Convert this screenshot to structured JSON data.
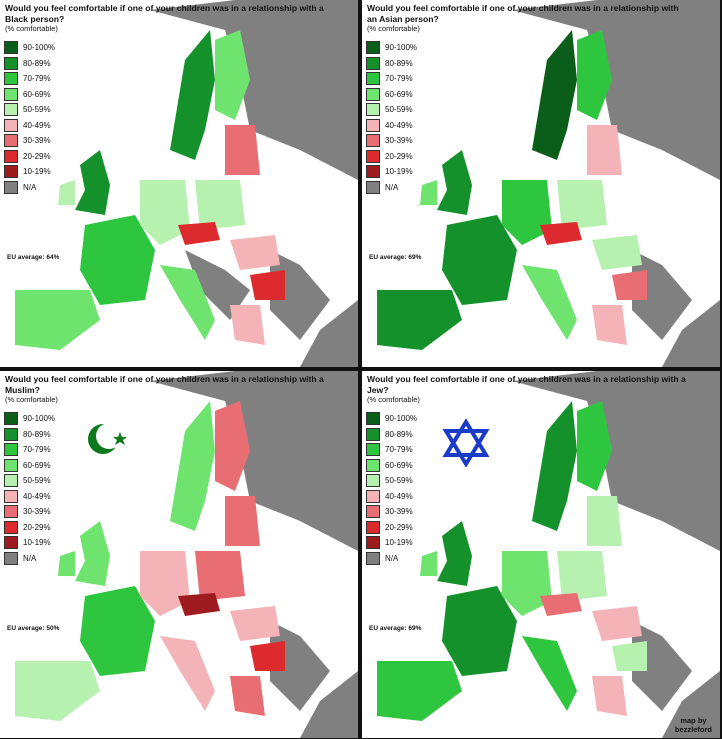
{
  "panels": [
    {
      "title": "Would you feel comfortable if one of your children was in a relationship with a Black person?",
      "subtitle": "(% comfortable)",
      "eu_average": "EU average: 64%"
    },
    {
      "title": "Would you feel comfortable if one of your children was in a relationship with an Asian person?",
      "subtitle": "(% comfortable)",
      "eu_average": "EU average: 69%"
    },
    {
      "title": "Would you feel comfortable if one of your children was in a relationship with a Muslim?",
      "subtitle": "(% comfortable)",
      "eu_average": "EU average: 50%"
    },
    {
      "title": "Would you feel comfortable if one of your children was in a relationship with a Jew?",
      "subtitle": "(% comfortable)",
      "eu_average": "EU average: 69%"
    }
  ],
  "legend": [
    {
      "label": "90-100%",
      "color": "#0b5e1a"
    },
    {
      "label": "80-89%",
      "color": "#14912b"
    },
    {
      "label": "70-79%",
      "color": "#2ec63f"
    },
    {
      "label": "60-69%",
      "color": "#6ee36e"
    },
    {
      "label": "50-59%",
      "color": "#b6f1b0"
    },
    {
      "label": "40-49%",
      "color": "#f4b3b7"
    },
    {
      "label": "30-39%",
      "color": "#e86e73"
    },
    {
      "label": "20-29%",
      "color": "#dc2a2e"
    },
    {
      "label": "10-19%",
      "color": "#9e1b1f"
    },
    {
      "label": "N/A",
      "color": "#808080"
    }
  ],
  "symbols": {
    "panel3": "crescent-and-star",
    "panel4": "star-of-david"
  },
  "credit": {
    "line1": "map by",
    "line2": "bezzleford"
  },
  "colors": {
    "sea": "#ffffff",
    "non_eu": "#808080",
    "panel_border": "#111111"
  }
}
